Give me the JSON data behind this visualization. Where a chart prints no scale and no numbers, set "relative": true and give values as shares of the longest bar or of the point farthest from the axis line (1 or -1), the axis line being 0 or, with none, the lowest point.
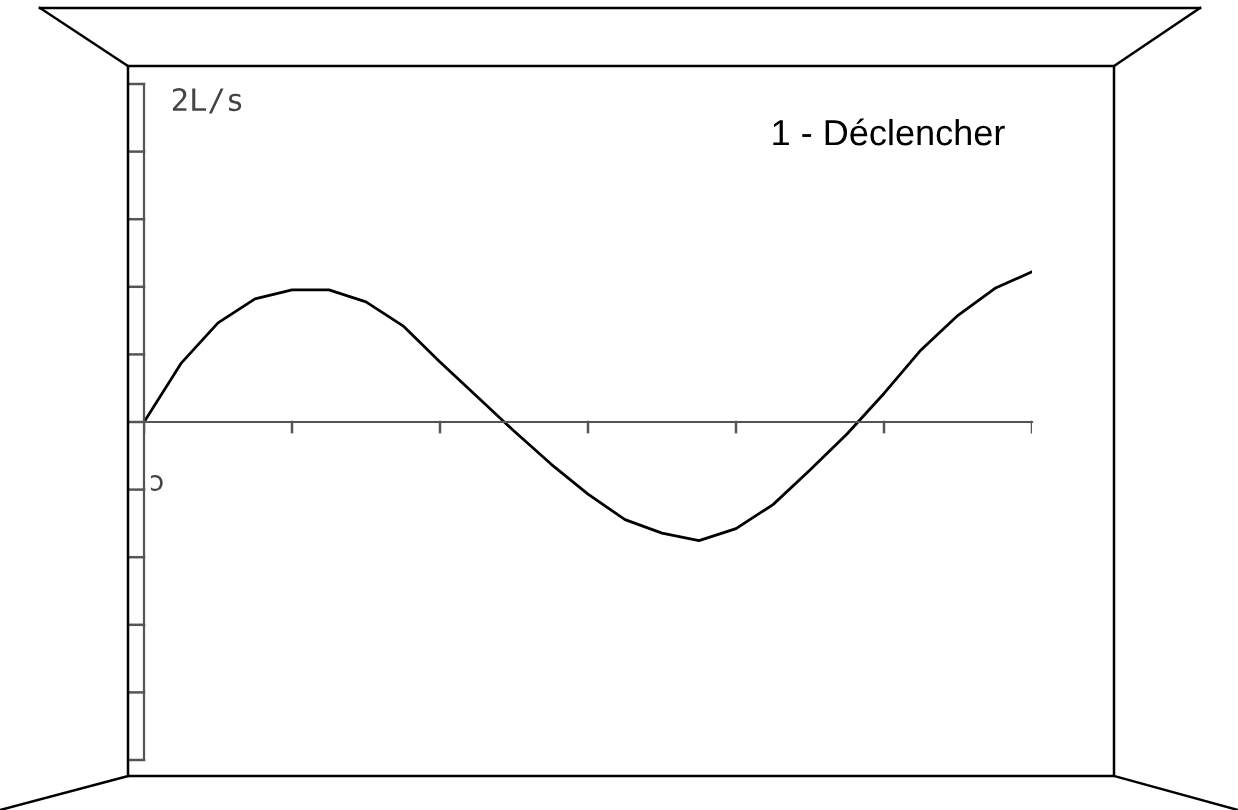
{
  "chart_data": {
    "type": "line",
    "title": "1 - Déclencher",
    "annotations": [
      "2L/s",
      "ɔ"
    ],
    "relative": true,
    "categories": [
      null,
      null,
      null,
      null,
      null,
      null,
      null,
      null,
      null,
      null,
      null,
      null,
      null,
      null,
      null,
      null,
      null,
      null,
      null,
      null,
      null,
      null,
      null,
      null,
      null
    ],
    "series": [
      {
        "color": "#000000",
        "values": [
          0,
          0.39,
          0.66,
          0.82,
          0.88,
          0.88,
          0.8,
          0.64,
          0.4,
          0.17,
          -0.06,
          -0.28,
          -0.48,
          -0.65,
          -0.74,
          -0.79,
          -0.71,
          -0.55,
          -0.32,
          -0.08,
          0.19,
          0.48,
          0.71,
          0.89,
          1
        ]
      }
    ],
    "grid": false,
    "legend": false,
    "marker": "none",
    "line_style": "solid"
  }
}
